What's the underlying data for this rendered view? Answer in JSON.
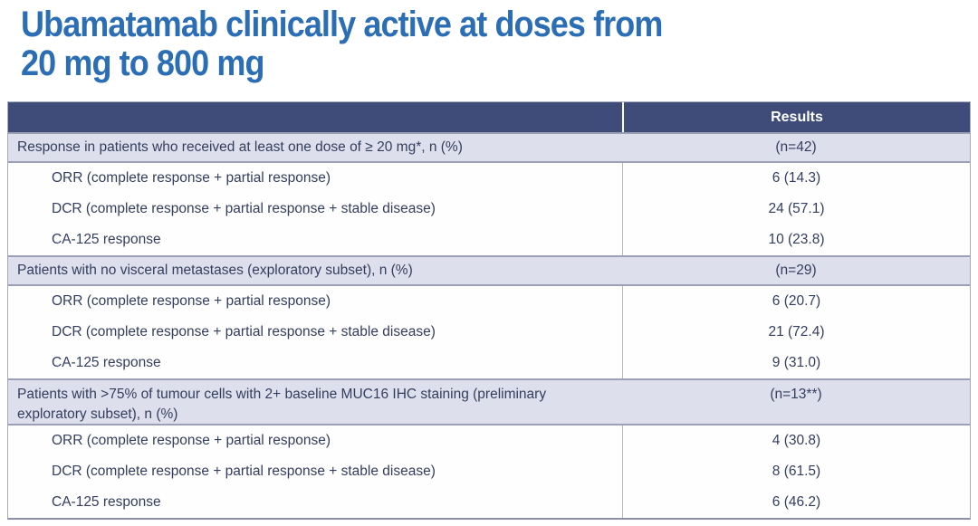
{
  "title": {
    "line1": "Ubamatamab clinically active at doses from",
    "line2": "20 mg to 800 mg"
  },
  "table": {
    "columns": {
      "metric": "",
      "results": "Results"
    },
    "sections": [
      {
        "label": "Response in patients who received at least one dose of ≥ 20 mg*, n (%)",
        "n": "(n=42)",
        "rows": [
          {
            "label": "ORR (complete response + partial response)",
            "value": "6 (14.3)"
          },
          {
            "label": "DCR (complete response + partial response + stable disease)",
            "value": "24 (57.1)"
          },
          {
            "label": "CA-125 response",
            "value": "10 (23.8)"
          }
        ]
      },
      {
        "label": "Patients with no visceral metastases (exploratory subset), n (%)",
        "n": "(n=29)",
        "rows": [
          {
            "label": "ORR (complete response + partial response)",
            "value": "6 (20.7)"
          },
          {
            "label": "DCR (complete response + partial response + stable disease)",
            "value": "21 (72.4)"
          },
          {
            "label": "CA-125 response",
            "value": "9 (31.0)"
          }
        ]
      },
      {
        "label": "Patients with >75% of tumour cells with 2+ baseline MUC16 IHC staining (preliminary exploratory subset), n (%)",
        "n": "(n=13**)",
        "rows": [
          {
            "label": "ORR (complete response + partial response)",
            "value": "4 (30.8)"
          },
          {
            "label": "DCR (complete response + partial response + stable disease)",
            "value": "8 (61.5)"
          },
          {
            "label": "CA-125 response",
            "value": "6 (46.2)"
          }
        ]
      }
    ]
  },
  "colors": {
    "title_blue": "#2b6eb5",
    "header_navy": "#3f4c7a",
    "header_text": "#ffffff",
    "section_bg": "#dde0ec",
    "section_border": "#9ba0b4",
    "row_bg": "#fefefe",
    "divider": "#b4b7c7",
    "text_navy": "#333e5e",
    "table_border": "#a6aabd"
  }
}
